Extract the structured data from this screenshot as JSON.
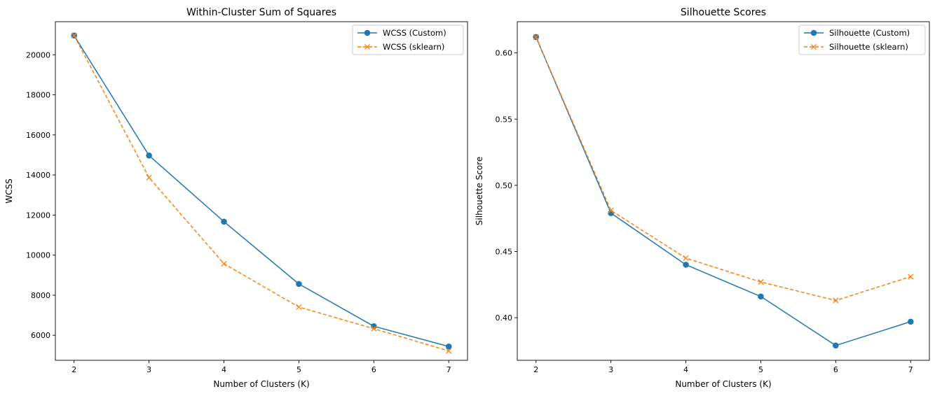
{
  "chart_data": [
    {
      "type": "line",
      "title": "Within-Cluster Sum of Squares",
      "xlabel": "Number of Clusters (K)",
      "ylabel": "WCSS",
      "x": [
        2,
        3,
        4,
        5,
        6,
        7
      ],
      "xlim": [
        1.75,
        7.25
      ],
      "ylim": [
        4750,
        21650
      ],
      "yticks": [
        6000,
        8000,
        10000,
        12000,
        14000,
        16000,
        18000,
        20000
      ],
      "grid": false,
      "legend": "top-right",
      "series": [
        {
          "name": "WCSS (Custom)",
          "values": [
            20960,
            14970,
            11670,
            8560,
            6450,
            5440
          ],
          "color": "#1f77b4",
          "linestyle": "solid",
          "marker": "circle"
        },
        {
          "name": "WCSS (sklearn)",
          "values": [
            20960,
            13870,
            9570,
            7410,
            6330,
            5220
          ],
          "color": "#ff7f0e",
          "linestyle": "dashed",
          "marker": "x"
        }
      ]
    },
    {
      "type": "line",
      "title": "Silhouette Scores",
      "xlabel": "Number of Clusters (K)",
      "ylabel": "Silhouette Score",
      "x": [
        2,
        3,
        4,
        5,
        6,
        7
      ],
      "xlim": [
        1.75,
        7.25
      ],
      "ylim": [
        0.3678,
        0.6236
      ],
      "yticks": [
        0.4,
        0.45,
        0.5,
        0.55,
        0.6
      ],
      "ytick_labels": [
        "0.40",
        "0.45",
        "0.50",
        "0.55",
        "0.60"
      ],
      "grid": false,
      "legend": "top-right",
      "series": [
        {
          "name": "Silhouette (Custom)",
          "values": [
            0.612,
            0.479,
            0.44,
            0.416,
            0.379,
            0.397
          ],
          "color": "#1f77b4",
          "linestyle": "solid",
          "marker": "circle"
        },
        {
          "name": "Silhouette (sklearn)",
          "values": [
            0.612,
            0.481,
            0.445,
            0.427,
            0.413,
            0.431
          ],
          "color": "#ff7f0e",
          "linestyle": "dashed",
          "marker": "x"
        }
      ]
    }
  ]
}
